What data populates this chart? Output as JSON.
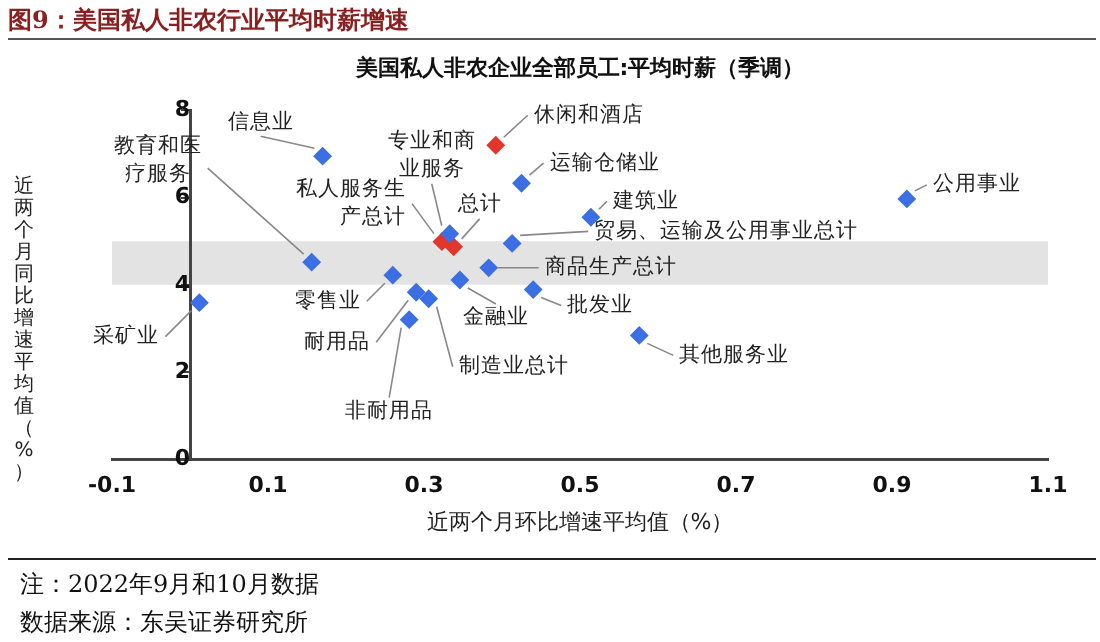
{
  "chart_data": {
    "type": "scatter",
    "title": "图9：美国私人非农行业平均时薪增速",
    "subtitle": "美国私人非农企业全部员工:平均时薪（季调）",
    "xlabel": "近两个月环比增速平均值（%）",
    "ylabel": "近两个月同比增速平均值（%）",
    "series": [
      {
        "color": "#3b6fe3",
        "x": [
          0.17,
          0.156,
          0.425,
          0.333,
          0.514,
          0.413,
          0.383,
          0.26,
          0.29,
          0.306,
          0.281,
          0.346,
          0.44,
          0.012,
          0.576,
          0.919
        ],
        "values": [
          6.95,
          4.52,
          6.33,
          5.17,
          5.55,
          4.95,
          4.39,
          4.22,
          3.83,
          3.68,
          3.2,
          4.11,
          3.89,
          3.59,
          2.84,
          5.97
        ]
      },
      {
        "color": "#e2352b",
        "x": [
          0.392,
          0.323,
          0.338
        ],
        "values": [
          7.2,
          4.99,
          4.87
        ]
      }
    ],
    "xlim": [
      -0.1,
      1.1
    ],
    "xticks": [
      -0.1,
      0.1,
      0.3,
      0.5,
      0.7,
      0.9,
      1.1
    ],
    "ylim": [
      0,
      8
    ],
    "yticks": [
      0,
      2,
      4,
      6,
      8
    ],
    "bands": [
      {
        "axis": "y",
        "from": 4,
        "to": 5,
        "color": "#e3e3e3"
      }
    ],
    "marker": "diamond",
    "grid": false,
    "legend": false,
    "annotations": [
      {
        "text": "信息业",
        "x": 0.17,
        "y": 6.95
      },
      {
        "text": "教育和医疗服务",
        "x": 0.156,
        "y": 4.52
      },
      {
        "text": "休闲和酒店",
        "x": 0.392,
        "y": 7.2
      },
      {
        "text": "运输仓储业",
        "x": 0.425,
        "y": 6.33
      },
      {
        "text": "专业和商业服务",
        "x": 0.333,
        "y": 5.17
      },
      {
        "text": "私人服务生产总计",
        "x": 0.323,
        "y": 4.99
      },
      {
        "text": "总计",
        "x": 0.338,
        "y": 4.87
      },
      {
        "text": "建筑业",
        "x": 0.514,
        "y": 5.55
      },
      {
        "text": "贸易、运输及公用事业总计",
        "x": 0.413,
        "y": 4.95
      },
      {
        "text": "商品生产总计",
        "x": 0.383,
        "y": 4.39
      },
      {
        "text": "零售业",
        "x": 0.26,
        "y": 4.22
      },
      {
        "text": "耐用品",
        "x": 0.29,
        "y": 3.83
      },
      {
        "text": "制造业总计",
        "x": 0.306,
        "y": 3.68
      },
      {
        "text": "非耐用品",
        "x": 0.281,
        "y": 3.2
      },
      {
        "text": "金融业",
        "x": 0.346,
        "y": 4.11
      },
      {
        "text": "批发业",
        "x": 0.44,
        "y": 3.89
      },
      {
        "text": "采矿业",
        "x": 0.012,
        "y": 3.59
      },
      {
        "text": "其他服务业",
        "x": 0.576,
        "y": 2.84
      },
      {
        "text": "公用事业",
        "x": 0.919,
        "y": 5.97
      },
      "注：2022年9月和10月数据",
      "数据来源：东吴证券研究所"
    ]
  }
}
